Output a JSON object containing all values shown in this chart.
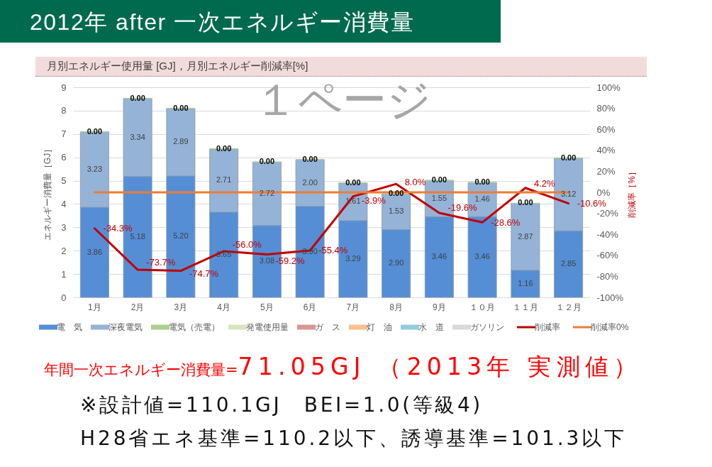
{
  "chart_data": {
    "type": "bar",
    "stacked": true,
    "title": "2012年 after 一次エネルギー消費量",
    "subtitle": "月別エネルギー使用量 [GJ]，月別エネルギー削減率[%]",
    "ylabel": "エネルギー消費量［GJ］",
    "y2label": "削減率［%］",
    "categories": [
      "1月",
      "2月",
      "3月",
      "4月",
      "5月",
      "6月",
      "7月",
      "8月",
      "9月",
      "１０月",
      "１１月",
      "１２月"
    ],
    "series": [
      {
        "name": "電　気",
        "color": "#558ed5",
        "values": [
          3.86,
          5.18,
          5.2,
          3.65,
          3.08,
          3.9,
          3.29,
          2.9,
          3.46,
          3.46,
          1.16,
          2.85
        ],
        "value_labels": [
          "3.86",
          "5.18",
          "5.20",
          "3.65",
          "3.08",
          "3.90",
          "3.29",
          "2.90",
          "3.46",
          "3.46",
          "1.16",
          "2.85"
        ]
      },
      {
        "name": "深夜電気",
        "color": "#95b3d7",
        "values": [
          3.23,
          3.34,
          2.89,
          2.71,
          2.72,
          2.0,
          1.61,
          1.53,
          1.55,
          1.46,
          2.87,
          3.12
        ],
        "value_labels": [
          "3.23",
          "3.34",
          "2.89",
          "2.71",
          "2.72",
          "2.00",
          "1.61",
          "1.53",
          "1.55",
          "1.46",
          "2.87",
          "3.12"
        ]
      },
      {
        "name": "電気（売電）",
        "color": "#a9d08e",
        "values": [
          0,
          0,
          0,
          0,
          0,
          0,
          0,
          0,
          0,
          0,
          0,
          0
        ],
        "value_labels": [
          "0.00",
          "0.00",
          "0.00",
          "0.00",
          "0.00",
          "0.00",
          "0.00",
          "0.00",
          "0.00",
          "0.00",
          "0.00",
          "0.00"
        ]
      },
      {
        "name": "発電使用量",
        "color": "#d8e4bc",
        "values": [
          null,
          null,
          null,
          null,
          null,
          null,
          null,
          null,
          null,
          null,
          null,
          null
        ]
      },
      {
        "name": "ガ　ス",
        "color": "#da9694",
        "values": [
          null,
          null,
          null,
          null,
          null,
          null,
          null,
          null,
          null,
          null,
          null,
          null
        ]
      },
      {
        "name": "灯　油",
        "color": "#fcbf8f",
        "values": [
          null,
          null,
          null,
          null,
          null,
          null,
          null,
          null,
          null,
          null,
          null,
          null
        ]
      },
      {
        "name": "水　道",
        "color": "#92cddc",
        "values": [
          null,
          null,
          null,
          null,
          null,
          null,
          null,
          null,
          null,
          null,
          null,
          null
        ]
      },
      {
        "name": "ガソリン",
        "color": "#d9d9d9",
        "values": [
          null,
          null,
          null,
          null,
          null,
          null,
          null,
          null,
          null,
          null,
          null,
          null
        ]
      },
      {
        "name": "削減率",
        "type": "line",
        "axis": "y2",
        "color": "#c00000",
        "values": [
          -34.3,
          -73.7,
          -74.7,
          -56.0,
          -59.2,
          -55.4,
          -3.9,
          8.0,
          -19.6,
          -28.6,
          4.2,
          -10.6
        ],
        "value_labels": [
          "-34.3%",
          "-73.7%",
          "-74.7%",
          "-56.0%",
          "-59.2%",
          "-55.4%",
          "-3.9%",
          "8.0%",
          "-19.6%",
          "-28.6%",
          "4.2%",
          "-10.6%"
        ]
      },
      {
        "name": "削減率0%",
        "type": "line",
        "axis": "y2",
        "color": "#ed7d31",
        "values": [
          0,
          0,
          0,
          0,
          0,
          0,
          0,
          0,
          0,
          0,
          0,
          0
        ]
      }
    ],
    "ylim": [
      0,
      9
    ],
    "yticks": [
      0,
      1,
      2,
      3,
      4,
      5,
      6,
      7,
      8,
      9
    ],
    "y2lim": [
      -100,
      100
    ],
    "y2ticks": [
      {
        "value": -100,
        "label": "-100%"
      },
      {
        "value": -80,
        "label": "-80%"
      },
      {
        "value": -60,
        "label": "-60%"
      },
      {
        "value": -40,
        "label": "-40%"
      },
      {
        "value": -20,
        "label": "-20%"
      },
      {
        "value": 0,
        "label": "0%"
      },
      {
        "value": 20,
        "label": "20%"
      },
      {
        "value": 40,
        "label": "40%"
      },
      {
        "value": 60,
        "label": "60%"
      },
      {
        "value": 80,
        "label": "80%"
      },
      {
        "value": 100,
        "label": "100%"
      }
    ],
    "grid": "y",
    "legend": "bottom",
    "annotations": [
      "１ページ",
      "年間一次エネルギー消費量=",
      "71.05GJ （2013年 実測値）",
      "※設計値=110.1GJ　BEI=1.0(等級4)",
      "H28省エネ基準=110.2以下、誘導基準=101.3以下"
    ]
  }
}
